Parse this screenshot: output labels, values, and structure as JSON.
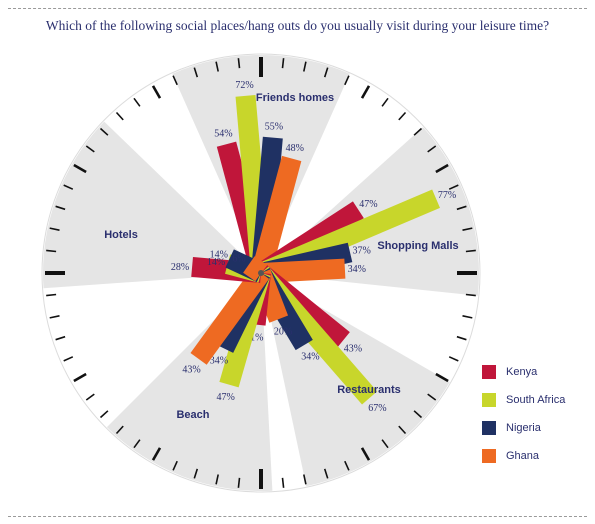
{
  "chart_data": {
    "type": "polar-bar",
    "title": "Which of the following social places/hang outs do you usually visit during your leisure time?",
    "series": [
      {
        "name": "Kenya",
        "color": "#c0163a"
      },
      {
        "name": "South Africa",
        "color": "#c8d62b"
      },
      {
        "name": "Nigeria",
        "color": "#1f3163"
      },
      {
        "name": "Ghana",
        "color": "#ee6a22"
      }
    ],
    "categories": [
      {
        "name": "Friends homes",
        "values": [
          54,
          72,
          55,
          48
        ]
      },
      {
        "name": "Shopping Malls",
        "values": [
          47,
          77,
          37,
          34
        ]
      },
      {
        "name": "Restaurants",
        "values": [
          43,
          67,
          34,
          20
        ]
      },
      {
        "name": "Beach",
        "values": [
          21,
          47,
          34,
          43
        ]
      },
      {
        "name": "Hotels",
        "values": [
          28,
          14,
          14,
          6
        ]
      }
    ],
    "value_suffix": "%"
  }
}
